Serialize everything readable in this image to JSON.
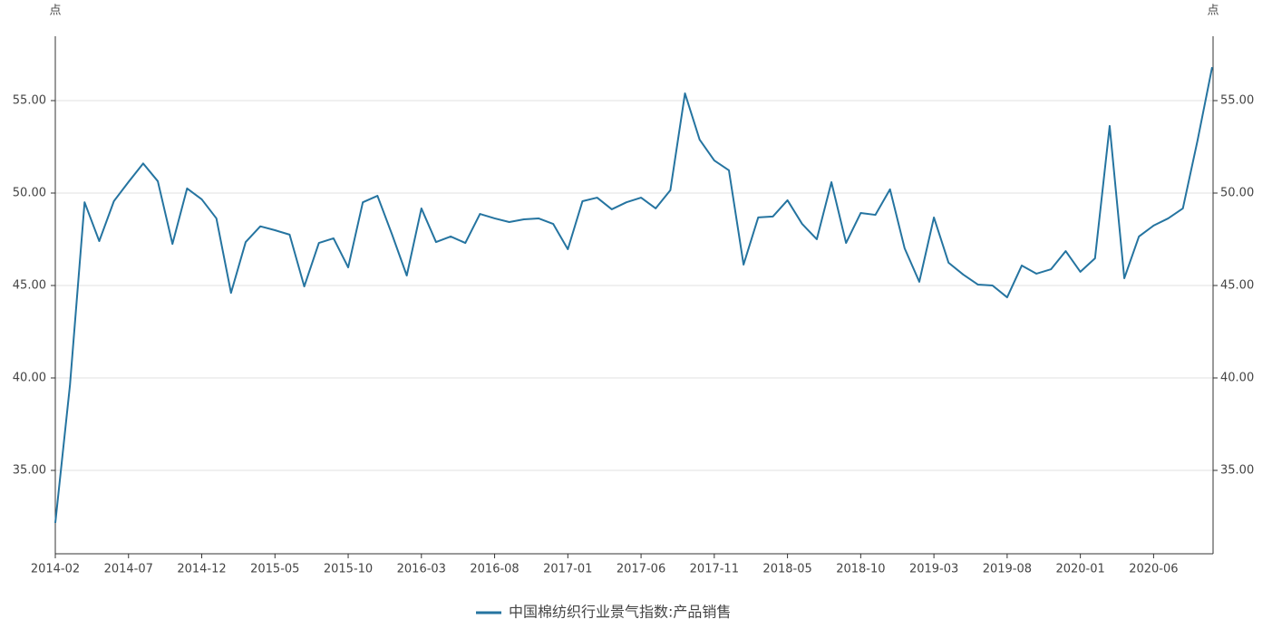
{
  "chart_data": {
    "type": "line",
    "y_unit": "点",
    "y2_unit": "点",
    "categories": [
      "2014-02",
      null,
      null,
      null,
      null,
      "2014-07",
      null,
      null,
      null,
      null,
      "2014-12",
      null,
      null,
      null,
      null,
      "2015-05",
      null,
      null,
      null,
      null,
      "2015-10",
      null,
      null,
      null,
      null,
      "2016-03",
      null,
      null,
      null,
      null,
      "2016-08",
      null,
      null,
      null,
      null,
      "2017-01",
      null,
      null,
      null,
      null,
      "2017-06",
      null,
      null,
      null,
      null,
      "2017-11",
      null,
      null,
      null,
      null,
      "2018-05",
      null,
      null,
      null,
      null,
      "2018-10",
      null,
      null,
      null,
      null,
      "2019-03",
      null,
      null,
      null,
      null,
      "2019-08",
      null,
      null,
      null,
      null,
      "2020-01",
      null,
      null,
      null,
      null,
      "2020-06",
      null,
      null,
      null,
      null
    ],
    "series": [
      {
        "name": "中国棉纺织行业景气指数:产品销售",
        "color": "#2574a0",
        "values": [
          32.16,
          39.6,
          49.5,
          47.4,
          49.56,
          50.6,
          51.6,
          50.64,
          47.25,
          50.25,
          49.66,
          48.63,
          44.6,
          47.35,
          48.2,
          47.99,
          47.75,
          44.95,
          47.3,
          47.55,
          45.98,
          49.5,
          49.85,
          47.75,
          45.54,
          49.17,
          47.35,
          47.65,
          47.3,
          48.87,
          48.63,
          48.43,
          48.58,
          48.63,
          48.33,
          46.96,
          49.56,
          49.75,
          49.12,
          49.5,
          49.75,
          49.17,
          50.15,
          55.39,
          52.89,
          51.76,
          51.23,
          46.13,
          48.68,
          48.73,
          49.61,
          48.33,
          47.5,
          50.59,
          47.3,
          48.92,
          48.82,
          50.2,
          47.01,
          45.2,
          48.68,
          46.23,
          45.59,
          45.05,
          45.0,
          44.36,
          46.08,
          45.64,
          45.88,
          46.86,
          45.74,
          46.47,
          53.63,
          45.39,
          47.65,
          48.24,
          48.63,
          49.17,
          52.84,
          56.81
        ]
      }
    ],
    "ylim": [
      30.49,
      58.48
    ],
    "yticks": [
      {
        "value": 35,
        "label": "35.00"
      },
      {
        "value": 40,
        "label": "40.00"
      },
      {
        "value": 45,
        "label": "45.00"
      },
      {
        "value": 50,
        "label": "50.00"
      },
      {
        "value": 55,
        "label": "55.00"
      }
    ],
    "y2lim": [
      30.49,
      58.48
    ],
    "y2ticks": [
      {
        "value": 35,
        "label": "35.00"
      },
      {
        "value": 40,
        "label": "40.00"
      },
      {
        "value": 45,
        "label": "45.00"
      },
      {
        "value": 50,
        "label": "50.00"
      },
      {
        "value": 55,
        "label": "55.00"
      }
    ],
    "grid": true
  }
}
